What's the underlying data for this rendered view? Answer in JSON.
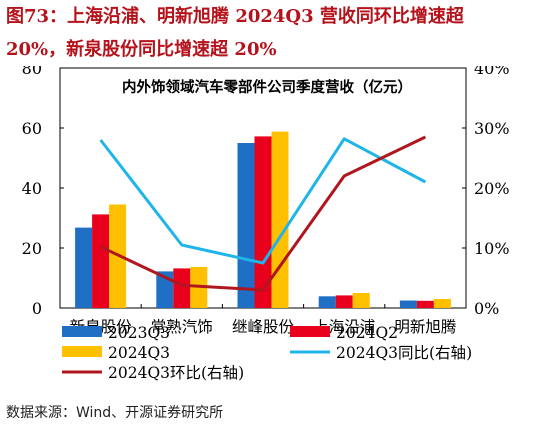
{
  "figure": {
    "title_line1": "图73：上海沿浦、明新旭腾 2024Q3 营收同环比增速超",
    "title_line2": "20%，新泉股份同比增速超 20%",
    "source": "数据来源：Wind、开源证券研究所"
  },
  "chart_data": {
    "type": "bar",
    "title": "内外饰领域汽车零部件公司季度营收（亿元）",
    "categories": [
      "新泉股份",
      "常熟汽饰",
      "继峰股份",
      "上海沿浦",
      "明新旭腾"
    ],
    "ylim_left": [
      0,
      80
    ],
    "yticks_left": [
      0,
      20,
      40,
      60,
      80
    ],
    "ylim_right": [
      0,
      40
    ],
    "yticks_right": [
      "0%",
      "10%",
      "20%",
      "30%",
      "40%"
    ],
    "yticks_right_values": [
      0,
      10,
      20,
      30,
      40
    ],
    "series": [
      {
        "name": "2023Q3",
        "type": "bar",
        "color": "#1f6fc5",
        "values": [
          26.8,
          12.2,
          55.0,
          3.9,
          2.5
        ]
      },
      {
        "name": "2024Q2",
        "type": "bar",
        "color": "#e8001c",
        "values": [
          31.2,
          13.2,
          57.2,
          4.2,
          2.4
        ]
      },
      {
        "name": "2024Q3",
        "type": "bar",
        "color": "#ffc000",
        "values": [
          34.5,
          13.7,
          58.8,
          5.0,
          3.0
        ]
      },
      {
        "name": "2024Q3同比(右轴)",
        "type": "line",
        "axis": "right",
        "color": "#1fb5e8",
        "values": [
          28.0,
          10.5,
          7.5,
          28.2,
          21.0
        ]
      },
      {
        "name": "2024Q3环比(右轴)",
        "type": "line",
        "axis": "right",
        "color": "#b0161e",
        "values": [
          10.2,
          3.8,
          3.0,
          22.0,
          28.5
        ]
      }
    ],
    "legend_placement": "bottom",
    "grid": false
  }
}
